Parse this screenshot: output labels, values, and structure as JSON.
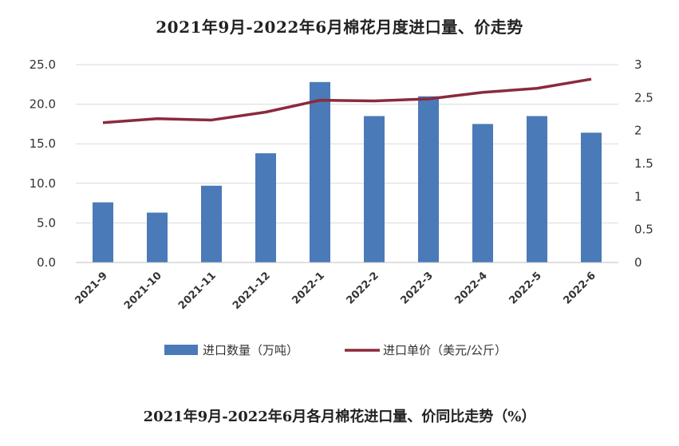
{
  "chart_data": {
    "type": "bar",
    "title": "2021年9月-2022年6月棉花月度进口量、价走势",
    "categories": [
      "2021-9",
      "2021-10",
      "2021-11",
      "2021-12",
      "2022-1",
      "2022-2",
      "2022-3",
      "2022-4",
      "2022-5",
      "2022-6"
    ],
    "series": [
      {
        "name": "进口数量（万吨）",
        "type": "bar",
        "axis": "left",
        "values": [
          7.6,
          6.3,
          9.7,
          13.8,
          22.8,
          18.5,
          21.0,
          17.5,
          18.5,
          16.4
        ],
        "color": "#4a7ab8"
      },
      {
        "name": "进口单价（美元/公斤）",
        "type": "line",
        "axis": "right",
        "values": [
          2.12,
          2.18,
          2.16,
          2.28,
          2.46,
          2.45,
          2.48,
          2.58,
          2.64,
          2.78
        ],
        "color": "#8b2a3c"
      }
    ],
    "y_left": {
      "ylim": [
        0,
        25
      ],
      "ticks": [
        "0.0",
        "5.0",
        "10.0",
        "15.0",
        "20.0",
        "25.0"
      ]
    },
    "y_right": {
      "ylim": [
        0,
        3
      ],
      "ticks": [
        "0",
        "0.5",
        "1",
        "1.5",
        "2",
        "2.5",
        "3"
      ]
    },
    "grid": true,
    "legend": "bottom"
  },
  "footer": {
    "next_title": "2021年9月-2022年6月各月棉花进口量、价同比走势（%）"
  }
}
